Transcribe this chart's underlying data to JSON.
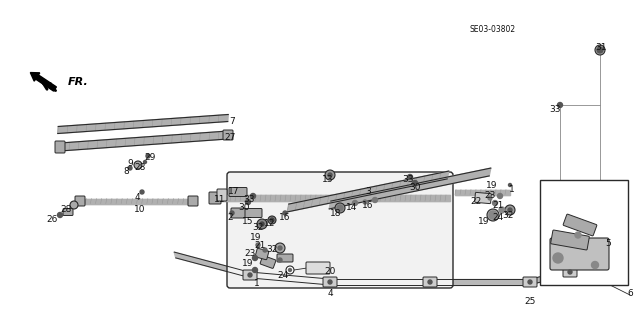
{
  "bg_color": "#ffffff",
  "diagram_code": "SE03-03802",
  "figsize": [
    6.4,
    3.19
  ],
  "dpi": 100,
  "line_color": "#2a2a2a",
  "label_color": "#111111",
  "label_fontsize": 6.5,
  "gray_part": "#888888",
  "dark_part": "#333333",
  "mid_part": "#666666"
}
